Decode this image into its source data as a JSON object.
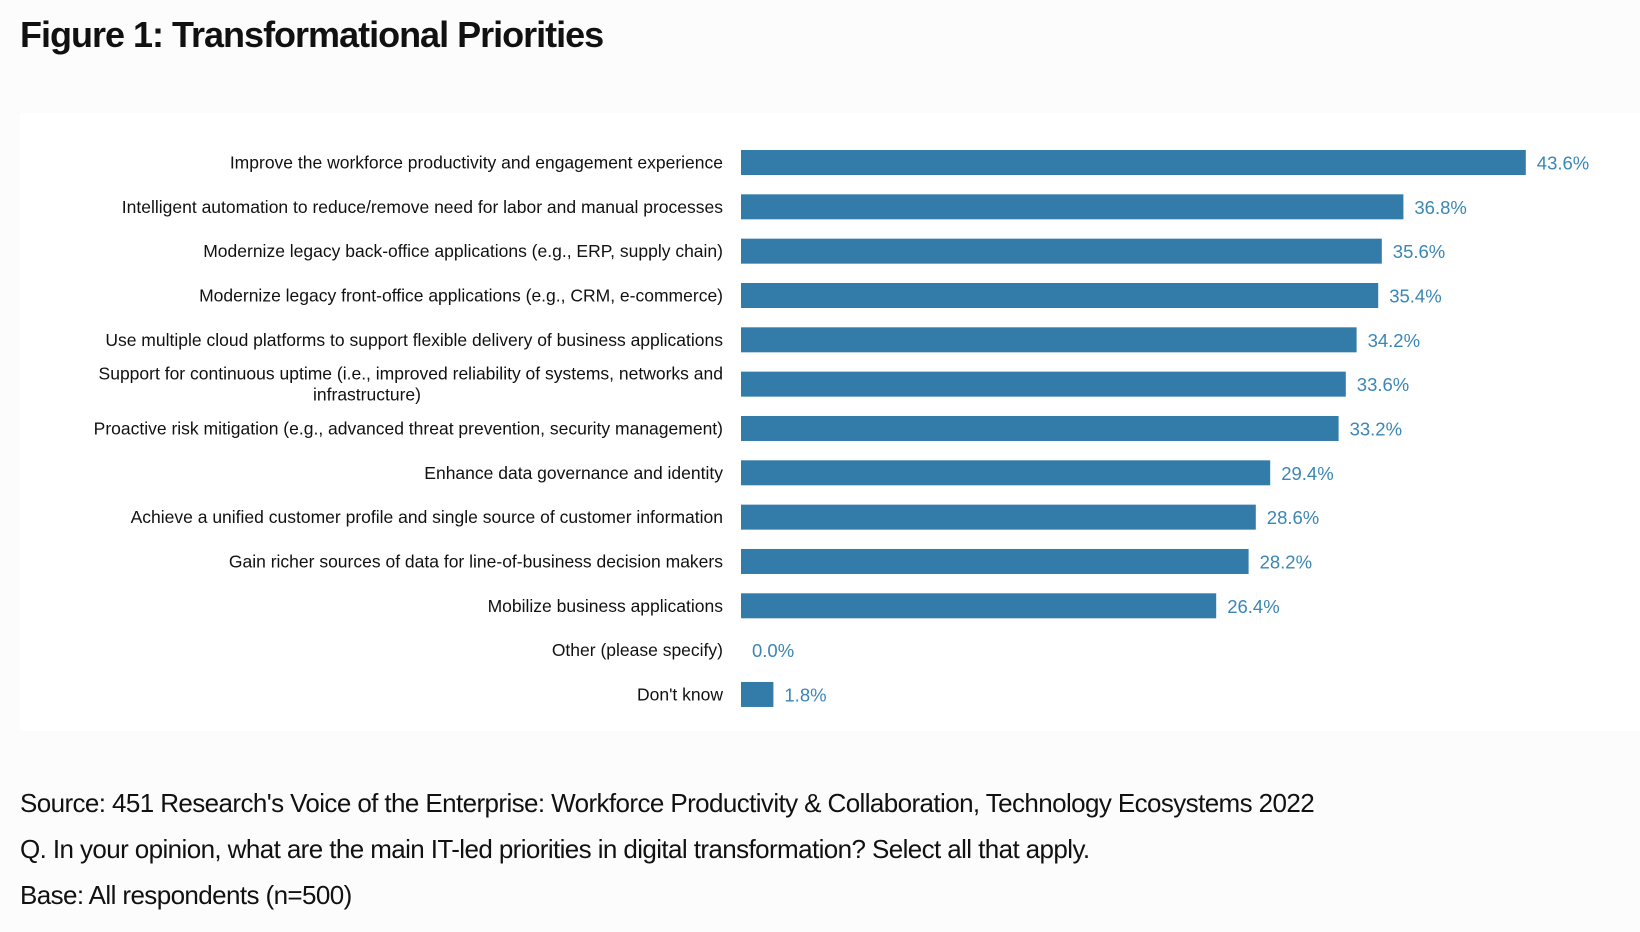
{
  "figure": {
    "title": "Figure 1: Transformational Priorities"
  },
  "notes": {
    "source": "Source: 451 Research's Voice of the Enterprise: Workforce Productivity & Collaboration, Technology Ecosystems 2022",
    "question": "Q. In your opinion, what are the main IT-led priorities in digital transformation? Select all that apply.",
    "base": "Base: All respondents (n=500)"
  },
  "colors": {
    "bar": "#337ba9",
    "value_label": "#3a86b4"
  },
  "chart_data": {
    "type": "bar",
    "orientation": "horizontal",
    "title": "Figure 1: Transformational Priorities",
    "xlabel": "",
    "ylabel": "",
    "unit": "%",
    "xlim": [
      0,
      45
    ],
    "grid": false,
    "legend": "none",
    "categories": [
      [
        "Improve the workforce productivity and engagement experience"
      ],
      [
        "Intelligent automation to reduce/remove need for labor and manual processes"
      ],
      [
        "Modernize legacy back-office applications (e.g., ERP, supply chain)"
      ],
      [
        "Modernize legacy front-office applications (e.g., CRM, e-commerce)"
      ],
      [
        "Use multiple cloud platforms to support flexible delivery of business applications"
      ],
      [
        "Support for continuous uptime (i.e., improved reliability of systems, networks and",
        "infrastructure)"
      ],
      [
        "Proactive risk mitigation (e.g., advanced threat prevention, security management)"
      ],
      [
        "Enhance data governance and identity"
      ],
      [
        "Achieve a unified customer profile and single source of customer information"
      ],
      [
        "Gain richer sources of data for line-of-business decision makers"
      ],
      [
        "Mobilize business applications"
      ],
      [
        "Other (please specify)"
      ],
      [
        "Don't know"
      ]
    ],
    "values": [
      43.6,
      36.8,
      35.6,
      35.4,
      34.2,
      33.6,
      33.2,
      29.4,
      28.6,
      28.2,
      26.4,
      0.0,
      1.8
    ],
    "value_labels": [
      "43.6%",
      "36.8%",
      "35.6%",
      "35.4%",
      "34.2%",
      "33.6%",
      "33.2%",
      "29.4%",
      "28.6%",
      "28.2%",
      "26.4%",
      "0.0%",
      "1.8%"
    ]
  }
}
